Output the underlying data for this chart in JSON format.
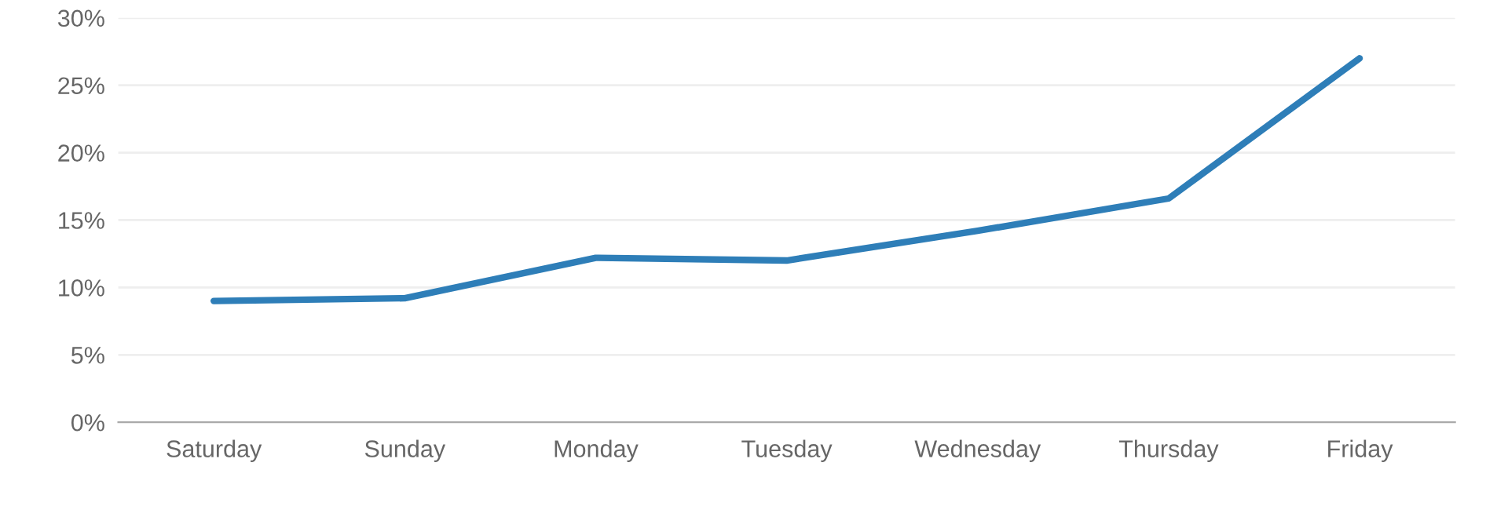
{
  "chart_data": {
    "type": "line",
    "categories": [
      "Saturday",
      "Sunday",
      "Monday",
      "Tuesday",
      "Wednesday",
      "Thursday",
      "Friday"
    ],
    "series": [
      {
        "color": "#2e7eb8",
        "values": [
          9,
          9.2,
          12.2,
          12,
          14.2,
          16.6,
          27
        ]
      }
    ],
    "ylim": [
      0,
      30
    ],
    "yticks": [
      {
        "value": 0,
        "label": "0%"
      },
      {
        "value": 5,
        "label": "5%"
      },
      {
        "value": 10,
        "label": "10%"
      },
      {
        "value": 15,
        "label": "15%"
      },
      {
        "value": 20,
        "label": "20%"
      },
      {
        "value": 25,
        "label": "25%"
      },
      {
        "value": 30,
        "label": "30%"
      }
    ],
    "grid": "y",
    "line_style": "solid",
    "marker": "none"
  }
}
